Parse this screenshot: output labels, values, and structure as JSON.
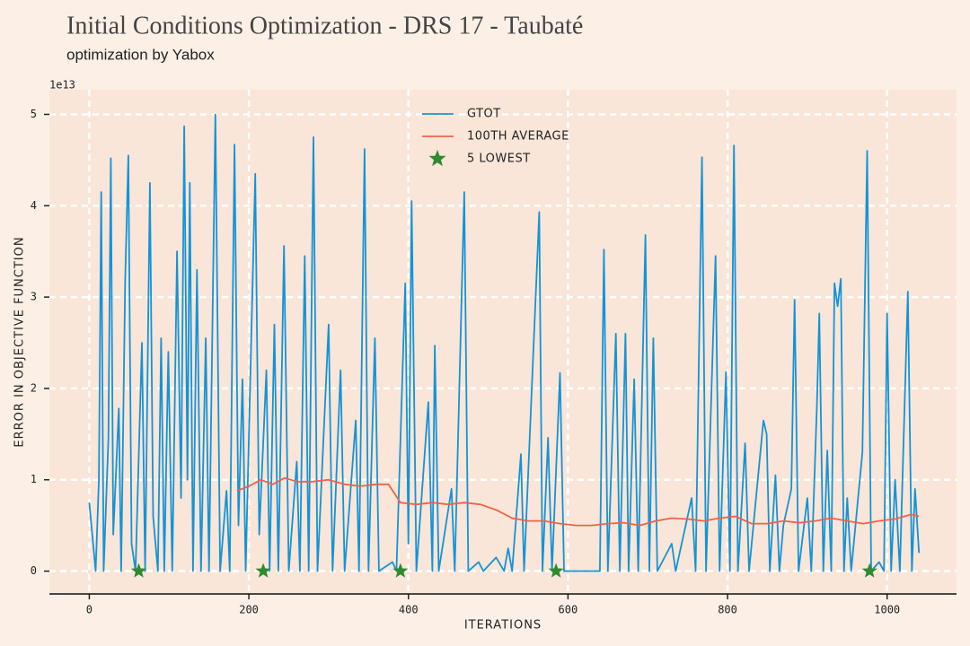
{
  "chart_data": {
    "type": "line",
    "title": "Initial Conditions Optimization - DRS 17 - Taubaté",
    "subtitle": "optimization by Yabox",
    "x_label": "ITERATIONS",
    "y_label": "ERROR IN OBJECTIVE FUNCTION",
    "y_offset_label": "1e13",
    "xlim": [
      -50,
      1087
    ],
    "ylim": [
      -0.25,
      5.27
    ],
    "xticks": [
      0,
      200,
      400,
      600,
      800,
      1000
    ],
    "yticks": [
      0,
      1,
      2,
      3,
      4,
      5
    ],
    "grid": true,
    "legend": "upper center",
    "series": [
      {
        "name": "GTOT",
        "color": "#1493d6",
        "kind": "line",
        "x": [
          0,
          8,
          12,
          15,
          18,
          24,
          27,
          30,
          37,
          40,
          45,
          49,
          53,
          58,
          66,
          70,
          76,
          80,
          86,
          90,
          94,
          99,
          104,
          110,
          115,
          119,
          123,
          126,
          130,
          135,
          140,
          146,
          150,
          158,
          164,
          172,
          176,
          182,
          187,
          192,
          196,
          208,
          213,
          222,
          226,
          232,
          237,
          244,
          250,
          260,
          264,
          270,
          275,
          281,
          286,
          300,
          305,
          315,
          320,
          334,
          338,
          345,
          350,
          358,
          363,
          380,
          385,
          396,
          400,
          404,
          410,
          425,
          430,
          433,
          438,
          454,
          458,
          470,
          475,
          488,
          494,
          510,
          520,
          525,
          530,
          541,
          545,
          564,
          568,
          575,
          580,
          590,
          595,
          640,
          645,
          650,
          660,
          665,
          672,
          676,
          683,
          688,
          697,
          702,
          707,
          712,
          730,
          735,
          755,
          760,
          768,
          773,
          785,
          790,
          798,
          803,
          808,
          813,
          822,
          827,
          845,
          849,
          853,
          860,
          865,
          870,
          880,
          884,
          889,
          900,
          905,
          912,
          915,
          920,
          925,
          930,
          934,
          938,
          942,
          946,
          950,
          955,
          969,
          975,
          980,
          990,
          996,
          1000,
          1005,
          1010,
          1016,
          1026,
          1031,
          1035,
          1040
        ],
        "values": [
          0.75,
          0,
          1.0,
          4.15,
          0,
          1.45,
          4.52,
          0.4,
          1.78,
          0,
          3.2,
          4.55,
          0.3,
          0,
          2.5,
          0,
          4.25,
          0.6,
          0,
          2.55,
          0,
          2.4,
          0,
          3.5,
          0.8,
          4.87,
          1.0,
          4.25,
          0,
          3.3,
          0,
          2.55,
          0,
          5.0,
          0,
          0.88,
          0,
          4.67,
          0.5,
          2.1,
          0,
          4.35,
          0.4,
          2.2,
          0,
          2.7,
          0,
          3.56,
          0,
          1.2,
          0,
          3.45,
          0,
          4.75,
          0,
          2.7,
          0,
          2.2,
          0,
          1.65,
          0,
          4.62,
          0,
          2.55,
          0,
          0.1,
          0,
          3.15,
          0.3,
          4.05,
          0,
          1.85,
          0,
          2.47,
          0,
          0.9,
          0,
          4.15,
          0,
          0.1,
          0,
          0.15,
          0,
          0.25,
          0,
          1.28,
          0,
          3.93,
          0,
          1.46,
          0,
          2.17,
          0,
          0,
          3.52,
          0,
          2.6,
          0,
          2.6,
          0,
          2.1,
          0,
          3.68,
          0,
          2.55,
          0,
          0.3,
          0,
          0.8,
          0,
          4.53,
          0,
          3.45,
          0,
          2.18,
          0,
          4.66,
          0,
          1.4,
          0,
          1.65,
          1.5,
          0,
          1.05,
          0,
          0.5,
          0.9,
          2.97,
          0,
          0.8,
          0,
          1.8,
          2.82,
          0,
          1.32,
          0,
          3.15,
          2.9,
          3.2,
          0,
          0.8,
          0,
          1.3,
          4.6,
          0,
          0.1,
          0,
          2.82,
          0,
          1.0,
          0,
          3.06,
          0,
          0.9,
          0.2
        ]
      },
      {
        "name": "100TH AVERAGE",
        "color": "#f0614a",
        "kind": "line",
        "x": [
          185,
          200,
          215,
          230,
          245,
          260,
          280,
          300,
          320,
          340,
          360,
          375,
          390,
          410,
          430,
          450,
          470,
          490,
          510,
          530,
          550,
          570,
          590,
          610,
          630,
          650,
          670,
          690,
          710,
          730,
          750,
          770,
          790,
          810,
          830,
          850,
          870,
          890,
          910,
          930,
          950,
          970,
          990,
          1010,
          1030,
          1040
        ],
        "values": [
          0.88,
          0.93,
          1.0,
          0.95,
          1.02,
          0.98,
          0.98,
          1.0,
          0.95,
          0.93,
          0.95,
          0.95,
          0.75,
          0.73,
          0.75,
          0.73,
          0.75,
          0.73,
          0.67,
          0.58,
          0.55,
          0.55,
          0.52,
          0.5,
          0.5,
          0.52,
          0.53,
          0.5,
          0.55,
          0.58,
          0.57,
          0.55,
          0.58,
          0.6,
          0.52,
          0.52,
          0.55,
          0.53,
          0.55,
          0.58,
          0.55,
          0.52,
          0.55,
          0.57,
          0.62,
          0.6
        ]
      },
      {
        "name": "5 LOWEST",
        "color": "#2e8b2e",
        "kind": "star",
        "x": [
          62,
          218,
          390,
          585,
          978
        ],
        "values": [
          0,
          0,
          0,
          0,
          0
        ]
      }
    ]
  }
}
